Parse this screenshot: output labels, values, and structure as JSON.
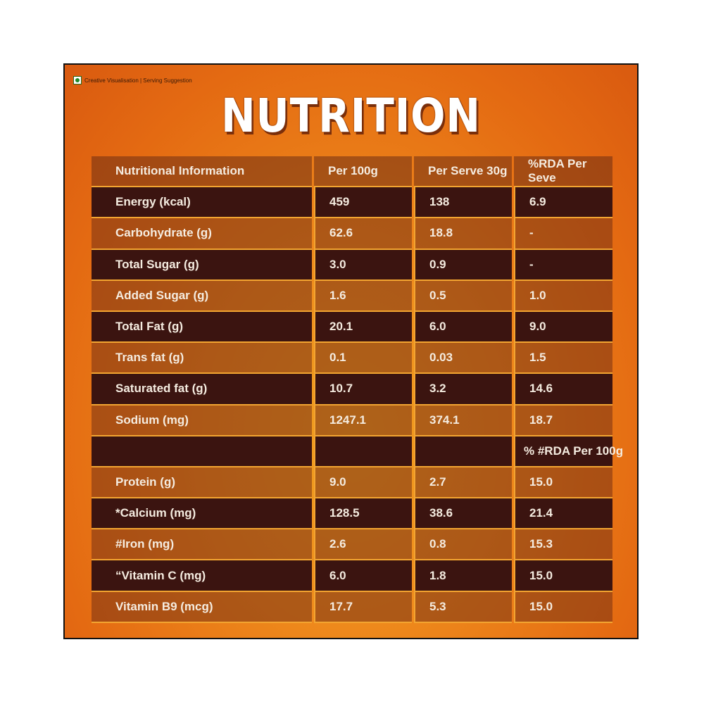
{
  "badge": "Creative Visualisation | Serving Suggestion",
  "title": "NUTRITION",
  "table": {
    "header": [
      "Nutritional Information",
      "Per 100g",
      "Per Serve 30g",
      "%RDA Per Seve"
    ],
    "rows_a": [
      [
        "Energy (kcal)",
        "459",
        "138",
        "6.9"
      ],
      [
        "Carbohydrate (g)",
        "62.6",
        "18.8",
        "-"
      ],
      [
        "Total Sugar (g)",
        "3.0",
        "0.9",
        "-"
      ],
      [
        "Added Sugar (g)",
        "1.6",
        "0.5",
        "1.0"
      ],
      [
        "Total Fat (g)",
        "20.1",
        "6.0",
        "9.0"
      ],
      [
        "Trans fat (g)",
        "0.1",
        "0.03",
        "1.5"
      ],
      [
        "Saturated fat (g)",
        "10.7",
        "3.2",
        "14.6"
      ],
      [
        "Sodium (mg)",
        "1247.1",
        "374.1",
        "18.7"
      ]
    ],
    "subheader": "% #RDA Per 100g",
    "rows_b": [
      [
        "Protein (g)",
        "9.0",
        "2.7",
        "15.0"
      ],
      [
        "*Calcium (mg)",
        "128.5",
        "38.6",
        "21.4"
      ],
      [
        "#Iron (mg)",
        "2.6",
        "0.8",
        "15.3"
      ],
      [
        "“Vitamin C (mg)",
        "6.0",
        "1.8",
        "15.0"
      ],
      [
        "Vitamin B9 (mcg)",
        "17.7",
        "5.3",
        "15.0"
      ]
    ]
  }
}
